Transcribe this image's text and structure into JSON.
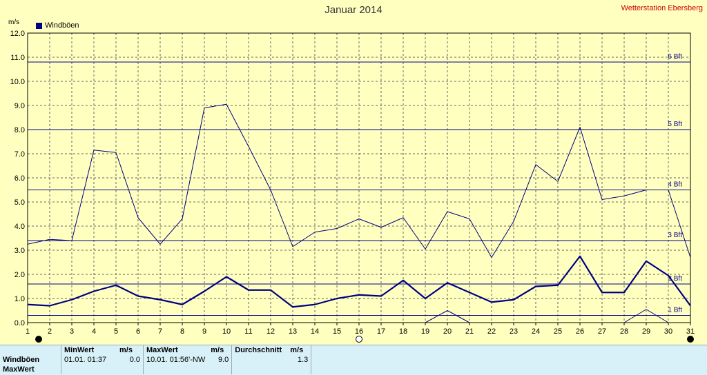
{
  "header": {
    "title": "Januar 2014",
    "station": "Wetterstation Ebersberg",
    "unit": "m/s",
    "legend_label": "Windböen"
  },
  "colors": {
    "background": "#ffffc0",
    "series": "#000080",
    "reference_lines": "#00008b",
    "grid": "#666666",
    "station_text": "#d00000",
    "stats_bg": "#d8f0f8"
  },
  "chart_data": {
    "type": "line",
    "title": "Januar 2014",
    "ylabel": "m/s",
    "xlim": [
      1,
      31
    ],
    "ylim": [
      0,
      12
    ],
    "x": [
      1,
      2,
      3,
      4,
      5,
      6,
      7,
      8,
      9,
      10,
      11,
      12,
      13,
      14,
      15,
      16,
      17,
      18,
      19,
      20,
      21,
      22,
      23,
      24,
      25,
      26,
      27,
      28,
      29,
      30,
      31
    ],
    "x_tick_labels": [
      "1",
      "2",
      "3",
      "4",
      "5",
      "6",
      "7",
      "8",
      "9",
      "10",
      "11",
      "12",
      "13",
      "14",
      "15",
      "16",
      "17",
      "18",
      "19",
      "20",
      "21",
      "22",
      "23",
      "24",
      "25",
      "26",
      "27",
      "28",
      "29",
      "30",
      "31"
    ],
    "y_tick_labels": [
      "0.0",
      "1.0",
      "2.0",
      "3.0",
      "4.0",
      "5.0",
      "6.0",
      "7.0",
      "8.0",
      "9.0",
      "10.0",
      "11.0",
      "12.0"
    ],
    "grid": true,
    "legend": "top-left",
    "series": [
      {
        "name": "Windböen",
        "role": "max",
        "values": [
          3.25,
          3.45,
          3.4,
          7.15,
          7.05,
          4.35,
          3.25,
          4.3,
          8.9,
          9.05,
          7.3,
          5.5,
          3.15,
          3.75,
          3.9,
          4.3,
          3.95,
          4.35,
          3.05,
          4.6,
          4.3,
          2.7,
          4.2,
          6.55,
          5.85,
          8.1,
          5.1,
          5.25,
          5.5,
          5.5,
          2.7
        ]
      },
      {
        "role": "mean",
        "values": [
          0.75,
          0.7,
          0.95,
          1.3,
          1.55,
          1.1,
          0.95,
          0.75,
          1.3,
          1.9,
          1.35,
          1.35,
          0.65,
          0.75,
          1.0,
          1.15,
          1.1,
          1.75,
          1.0,
          1.65,
          1.25,
          0.85,
          0.95,
          1.5,
          1.55,
          2.75,
          1.25,
          1.25,
          2.55,
          1.95,
          0.7
        ]
      },
      {
        "role": "min",
        "values": [
          0,
          0,
          0,
          0,
          0,
          0,
          0,
          0,
          0,
          0,
          0,
          0,
          0,
          0,
          0,
          0,
          0,
          0,
          0,
          0.5,
          0,
          0,
          0,
          0,
          0,
          0,
          0,
          0,
          0.55,
          0,
          0
        ]
      }
    ],
    "reference_lines": [
      {
        "label": "1 Bft",
        "value": 0.3
      },
      {
        "label": "2 Bft",
        "value": 1.6
      },
      {
        "label": "3 Bft",
        "value": 3.4
      },
      {
        "label": "4 Bft",
        "value": 5.5
      },
      {
        "label": "5 Bft",
        "value": 8.0
      },
      {
        "label": "6 Bft",
        "value": 10.8
      }
    ],
    "moon_phases": [
      {
        "day": 1,
        "phase": "new"
      },
      {
        "day": 16,
        "phase": "full"
      },
      {
        "day": 31,
        "phase": "new"
      }
    ]
  },
  "stats": {
    "headers": {
      "min": "MinWert",
      "min_unit": "m/s",
      "max": "MaxWert",
      "max_unit": "m/s",
      "avg": "Durchschnitt",
      "avg_unit": "m/s"
    },
    "rows": [
      {
        "label": "Windböen",
        "min_time": "01.01.  01:37",
        "min_value": "0.0",
        "max_time": "10.01.  01:56'-NW",
        "max_value": "9.0",
        "avg_value": "1.3"
      },
      {
        "label": "MaxWert"
      }
    ]
  }
}
